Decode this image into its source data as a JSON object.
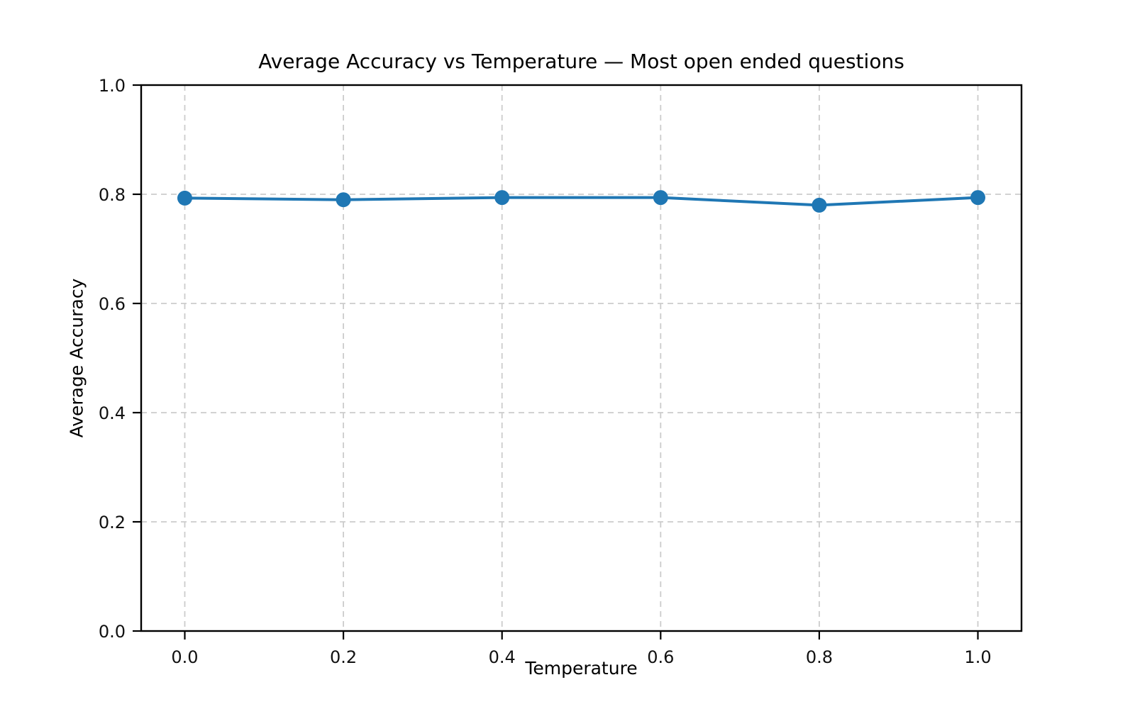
{
  "chart_data": {
    "type": "line",
    "title": "Average Accuracy vs Temperature — Most open ended questions",
    "xlabel": "Temperature",
    "ylabel": "Average Accuracy",
    "x": [
      0.0,
      0.2,
      0.4,
      0.6,
      0.8,
      1.0
    ],
    "series": [
      {
        "name": "Average Accuracy",
        "values": [
          0.793,
          0.79,
          0.794,
          0.794,
          0.78,
          0.794
        ]
      }
    ],
    "xticks": [
      0.0,
      0.2,
      0.4,
      0.6,
      0.8,
      1.0
    ],
    "xtick_labels": [
      "0.0",
      "0.2",
      "0.4",
      "0.6",
      "0.8",
      "1.0"
    ],
    "yticks": [
      0.0,
      0.2,
      0.4,
      0.6,
      0.8,
      1.0
    ],
    "ytick_labels": [
      "0.0",
      "0.2",
      "0.4",
      "0.6",
      "0.8",
      "1.0"
    ],
    "xlim": [
      -0.055,
      1.055
    ],
    "ylim": [
      0.0,
      1.0
    ],
    "grid": true,
    "grid_style": "dashed",
    "legend": "none",
    "colors": {
      "line": "#1f77b4",
      "marker": "#1f77b4",
      "grid": "#cccccc",
      "spine": "#000000",
      "text": "#111111",
      "background": "#ffffff"
    }
  }
}
